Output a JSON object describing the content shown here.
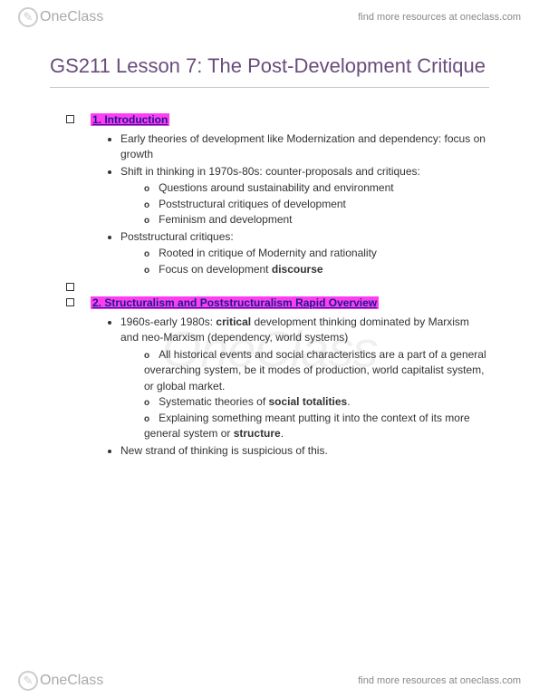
{
  "brand": {
    "name": "OneClass",
    "icon_glyph": "✎"
  },
  "header": {
    "link_text": "find more resources at oneclass.com"
  },
  "footer": {
    "link_text": "find more resources at oneclass.com"
  },
  "watermark": "OneClass",
  "page": {
    "title": "GS211 Lesson 7: The Post-Development Critique",
    "title_color": "#6a4c7c",
    "highlight_color": "#ff3ef2",
    "heading_text_color": "#1a1a8a"
  },
  "sections": [
    {
      "heading": "1. Introduction",
      "bullets": [
        {
          "text": "Early theories of development like Modernization and dependency: focus on growth"
        },
        {
          "text": "Shift in thinking in 1970s-80s: counter-proposals and critiques:",
          "sub": [
            "Questions around sustainability and environment",
            "Poststructural critiques of development",
            "Feminism and development"
          ]
        },
        {
          "text": "Poststructural critiques:",
          "sub": [
            "Rooted in critique of Modernity and rationality",
            "Focus on development <b>discourse</b>"
          ]
        }
      ]
    },
    {
      "heading": "2. Structuralism and Poststructuralism Rapid Overview",
      "bullets": [
        {
          "text": "1960s-early 1980s: <b>critical</b> development thinking dominated by Marxism and neo-Marxism (dependency, world systems)",
          "sub": [
            "All historical events and social characteristics are a part of a general overarching system, be it modes of production, world capitalist system, or global market.",
            "Systematic theories of <b>social totalities</b>.",
            "Explaining something meant putting it into the context of its more general system or <b>structure</b>."
          ]
        },
        {
          "text": "New strand of thinking is suspicious of this."
        }
      ]
    }
  ]
}
